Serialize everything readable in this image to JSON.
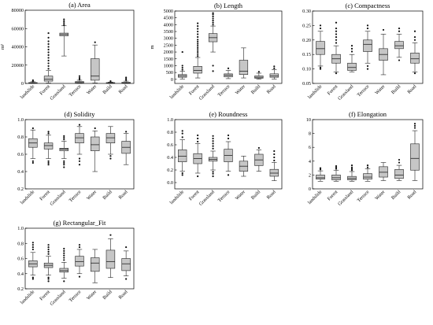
{
  "chart_data": [
    {
      "type": "box",
      "title": "(a) Area",
      "ylabel": "m²",
      "ylim": [
        0,
        80000
      ],
      "yticks": [
        "0",
        "20000",
        "40000",
        "60000",
        "80000"
      ],
      "categories": [
        "landslide",
        "Forest",
        "Grassland",
        "Terrace",
        "Water",
        "Build",
        "Road"
      ],
      "boxes": [
        {
          "min": 0,
          "q1": 200,
          "median": 500,
          "q3": 900,
          "max": 1800,
          "outliers": [
            2500,
            3500
          ]
        },
        {
          "min": 500,
          "q1": 2500,
          "median": 4500,
          "q3": 8000,
          "max": 14000,
          "outliers": [
            16000,
            19000,
            22000,
            25000,
            28000,
            31000,
            34000,
            37000,
            40000,
            43000,
            46000,
            50000,
            55000
          ]
        },
        {
          "min": 30000,
          "q1": 52000,
          "median": 53500,
          "q3": 55000,
          "max": 63000,
          "outliers": [
            64000,
            66000,
            68000,
            70000
          ]
        },
        {
          "min": 0,
          "q1": 500,
          "median": 1000,
          "q3": 2000,
          "max": 3500,
          "outliers": [
            4500,
            6000,
            8000
          ]
        },
        {
          "min": 500,
          "q1": 3500,
          "median": 8000,
          "q3": 27000,
          "max": 42000,
          "outliers": [
            45000
          ]
        },
        {
          "min": 0,
          "q1": 200,
          "median": 500,
          "q3": 900,
          "max": 1500,
          "outliers": [
            2500
          ]
        },
        {
          "min": 0,
          "q1": 200,
          "median": 500,
          "q3": 1200,
          "max": 2500,
          "outliers": [
            3500,
            5000,
            6500
          ]
        }
      ]
    },
    {
      "type": "box",
      "title": "(b) Length",
      "ylabel": "m",
      "ylim": [
        -300,
        5000
      ],
      "yticks": [
        "0",
        "500",
        "1000",
        "1500",
        "2000",
        "2500",
        "3000",
        "3500",
        "4000",
        "4500",
        "5000"
      ],
      "categories": [
        "landslide",
        "Forest",
        "Grassland",
        "Terrace",
        "Water",
        "Build",
        "Road"
      ],
      "boxes": [
        {
          "min": 20,
          "q1": 150,
          "median": 250,
          "q3": 350,
          "max": 600,
          "outliers": [
            700,
            850,
            1000,
            2000
          ]
        },
        {
          "min": 100,
          "q1": 450,
          "median": 650,
          "q3": 950,
          "max": 1600,
          "outliers": [
            1700,
            1850,
            2000,
            2150,
            2300,
            2450,
            2600,
            2750,
            2900,
            3100,
            3300,
            3500,
            3700,
            3900,
            4100
          ]
        },
        {
          "min": 2000,
          "q1": 2750,
          "median": 3050,
          "q3": 3350,
          "max": 3900,
          "outliers": [
            4000,
            4150,
            4300,
            4450,
            4600,
            4750,
            4850,
            600,
            1000
          ]
        },
        {
          "min": 50,
          "q1": 180,
          "median": 300,
          "q3": 400,
          "max": 650,
          "outliers": [
            800
          ]
        },
        {
          "min": 100,
          "q1": 350,
          "median": 600,
          "q3": 1400,
          "max": 2300,
          "outliers": []
        },
        {
          "min": 20,
          "q1": 80,
          "median": 150,
          "q3": 250,
          "max": 450,
          "outliers": [
            550
          ]
        },
        {
          "min": 20,
          "q1": 150,
          "median": 250,
          "q3": 400,
          "max": 700,
          "outliers": [
            800,
            950
          ]
        }
      ]
    },
    {
      "type": "box",
      "title": "(c) Compactness",
      "ylabel": "",
      "ylim": [
        0.05,
        0.3
      ],
      "yticks": [
        "0.05",
        "0.10",
        "0.15",
        "0.20",
        "0.25",
        "0.30"
      ],
      "categories": [
        "landslide",
        "Forest",
        "Grassland",
        "Terrace",
        "Water",
        "Build",
        "Road"
      ],
      "boxes": [
        {
          "min": 0.11,
          "q1": 0.15,
          "median": 0.17,
          "q3": 0.195,
          "max": 0.23,
          "outliers": [
            0.1,
            0.105,
            0.24,
            0.25
          ]
        },
        {
          "min": 0.09,
          "q1": 0.12,
          "median": 0.135,
          "q3": 0.15,
          "max": 0.18,
          "outliers": [
            0.085,
            0.19,
            0.2,
            0.21,
            0.22,
            0.23,
            0.24,
            0.26
          ]
        },
        {
          "min": 0.09,
          "q1": 0.095,
          "median": 0.105,
          "q3": 0.12,
          "max": 0.15,
          "outliers": [
            0.16,
            0.17,
            0.18
          ]
        },
        {
          "min": 0.12,
          "q1": 0.16,
          "median": 0.185,
          "q3": 0.2,
          "max": 0.23,
          "outliers": [
            0.1,
            0.11,
            0.24,
            0.25
          ]
        },
        {
          "min": 0.08,
          "q1": 0.13,
          "median": 0.15,
          "q3": 0.17,
          "max": 0.22,
          "outliers": [
            0.235
          ]
        },
        {
          "min": 0.14,
          "q1": 0.17,
          "median": 0.18,
          "q3": 0.195,
          "max": 0.22,
          "outliers": [
            0.13,
            0.23,
            0.24
          ]
        },
        {
          "min": 0.09,
          "q1": 0.12,
          "median": 0.135,
          "q3": 0.155,
          "max": 0.19,
          "outliers": [
            0.085,
            0.2,
            0.21,
            0.23
          ]
        }
      ]
    },
    {
      "type": "box",
      "title": "(d) Solidity",
      "ylabel": "",
      "ylim": [
        0.2,
        1.0
      ],
      "yticks": [
        "0.2",
        "0.4",
        "0.6",
        "0.8",
        "1.0"
      ],
      "categories": [
        "landslide",
        "Forest",
        "Grassland",
        "Terrace",
        "Water",
        "Build",
        "Road"
      ],
      "boxes": [
        {
          "min": 0.55,
          "q1": 0.68,
          "median": 0.73,
          "q3": 0.78,
          "max": 0.88,
          "outliers": [
            0.5,
            0.52,
            0.9
          ]
        },
        {
          "min": 0.55,
          "q1": 0.66,
          "median": 0.7,
          "q3": 0.73,
          "max": 0.82,
          "outliers": [
            0.48,
            0.5,
            0.52,
            0.84,
            0.86
          ]
        },
        {
          "min": 0.55,
          "q1": 0.64,
          "median": 0.66,
          "q3": 0.67,
          "max": 0.75,
          "outliers": [
            0.45,
            0.48,
            0.5,
            0.52,
            0.77,
            0.79,
            0.81
          ]
        },
        {
          "min": 0.6,
          "q1": 0.73,
          "median": 0.79,
          "q3": 0.84,
          "max": 0.92,
          "outliers": [
            0.48,
            0.52,
            0.55,
            0.94
          ]
        },
        {
          "min": 0.4,
          "q1": 0.64,
          "median": 0.71,
          "q3": 0.8,
          "max": 0.87,
          "outliers": [
            0.9
          ]
        },
        {
          "min": 0.6,
          "q1": 0.73,
          "median": 0.79,
          "q3": 0.84,
          "max": 0.92,
          "outliers": [
            0.55,
            0.58
          ]
        },
        {
          "min": 0.48,
          "q1": 0.61,
          "median": 0.68,
          "q3": 0.75,
          "max": 0.84,
          "outliers": [
            0.86
          ]
        }
      ]
    },
    {
      "type": "box",
      "title": "(e) Roundness",
      "ylabel": "",
      "ylim": [
        -0.1,
        1.0
      ],
      "yticks": [
        "0.0",
        "0.2",
        "0.4",
        "0.6",
        "0.8",
        "1.0"
      ],
      "categories": [
        "landslide",
        "Forest",
        "Grassland",
        "Terrace",
        "Water",
        "Build",
        "Road"
      ],
      "boxes": [
        {
          "min": 0.18,
          "q1": 0.33,
          "median": 0.42,
          "q3": 0.52,
          "max": 0.68,
          "outliers": [
            0.12,
            0.15,
            0.72,
            0.78,
            0.82
          ]
        },
        {
          "min": 0.15,
          "q1": 0.3,
          "median": 0.38,
          "q3": 0.46,
          "max": 0.62,
          "outliers": [
            0.1,
            0.65,
            0.7,
            0.75
          ]
        },
        {
          "min": 0.2,
          "q1": 0.34,
          "median": 0.37,
          "q3": 0.4,
          "max": 0.5,
          "outliers": [
            0.1,
            0.14,
            0.17,
            0.54,
            0.58,
            0.62,
            0.66,
            0.7,
            0.74
          ]
        },
        {
          "min": 0.18,
          "q1": 0.33,
          "median": 0.43,
          "q3": 0.53,
          "max": 0.65,
          "outliers": [
            0.12,
            0.7,
            0.75
          ]
        },
        {
          "min": 0.1,
          "q1": 0.18,
          "median": 0.26,
          "q3": 0.34,
          "max": 0.42,
          "outliers": []
        },
        {
          "min": 0.18,
          "q1": 0.27,
          "median": 0.36,
          "q3": 0.45,
          "max": 0.52,
          "outliers": [
            0.55
          ]
        },
        {
          "min": 0.03,
          "q1": 0.1,
          "median": 0.15,
          "q3": 0.21,
          "max": 0.32,
          "outliers": [
            0.35,
            0.4,
            0.45,
            0.5
          ]
        }
      ]
    },
    {
      "type": "box",
      "title": "(f) Elongation",
      "ylabel": "",
      "ylim": [
        0,
        10
      ],
      "yticks": [
        "0",
        "2",
        "4",
        "6",
        "8",
        "10"
      ],
      "categories": [
        "landslide",
        "Forest",
        "Grassland",
        "Terrace",
        "Water",
        "Build",
        "Road"
      ],
      "boxes": [
        {
          "min": 1.1,
          "q1": 1.4,
          "median": 1.6,
          "q3": 2.0,
          "max": 2.6,
          "outliers": [
            2.8,
            3.0
          ]
        },
        {
          "min": 1.1,
          "q1": 1.3,
          "median": 1.6,
          "q3": 2.0,
          "max": 2.7,
          "outliers": [
            2.9,
            3.1,
            3.3
          ]
        },
        {
          "min": 1.1,
          "q1": 1.3,
          "median": 1.5,
          "q3": 1.8,
          "max": 2.5,
          "outliers": [
            2.7,
            2.9,
            3.1,
            3.4
          ]
        },
        {
          "min": 1.1,
          "q1": 1.4,
          "median": 1.7,
          "q3": 2.2,
          "max": 2.9,
          "outliers": [
            3.1,
            3.4
          ]
        },
        {
          "min": 1.2,
          "q1": 1.7,
          "median": 2.4,
          "q3": 3.2,
          "max": 3.8,
          "outliers": []
        },
        {
          "min": 1.2,
          "q1": 1.5,
          "median": 2.0,
          "q3": 2.8,
          "max": 3.4,
          "outliers": [
            3.8,
            4.2
          ]
        },
        {
          "min": 1.2,
          "q1": 2.7,
          "median": 4.4,
          "q3": 6.5,
          "max": 8.4,
          "outliers": [
            8.8,
            9.1,
            9.4
          ]
        }
      ]
    },
    {
      "type": "box",
      "title": "(g) Rectangular_Fit",
      "ylabel": "",
      "ylim": [
        0.2,
        1.0
      ],
      "yticks": [
        "0.2",
        "0.4",
        "0.6",
        "0.8",
        "1.0"
      ],
      "categories": [
        "landslide",
        "Forest",
        "Grassland",
        "Terrace",
        "Water",
        "Build",
        "Road"
      ],
      "boxes": [
        {
          "min": 0.38,
          "q1": 0.49,
          "median": 0.53,
          "q3": 0.57,
          "max": 0.68,
          "outliers": [
            0.33,
            0.35,
            0.72,
            0.75,
            0.78,
            0.81
          ]
        },
        {
          "min": 0.38,
          "q1": 0.48,
          "median": 0.51,
          "q3": 0.54,
          "max": 0.63,
          "outliers": [
            0.3,
            0.33,
            0.35,
            0.66,
            0.69,
            0.72,
            0.75,
            0.78
          ]
        },
        {
          "min": 0.34,
          "q1": 0.42,
          "median": 0.44,
          "q3": 0.47,
          "max": 0.55,
          "outliers": [
            0.3,
            0.58,
            0.61,
            0.64,
            0.67,
            0.7,
            0.73
          ]
        },
        {
          "min": 0.4,
          "q1": 0.5,
          "median": 0.56,
          "q3": 0.63,
          "max": 0.72,
          "outliers": [
            0.36,
            0.75,
            0.78
          ]
        },
        {
          "min": 0.28,
          "q1": 0.43,
          "median": 0.54,
          "q3": 0.61,
          "max": 0.72,
          "outliers": []
        },
        {
          "min": 0.35,
          "q1": 0.47,
          "median": 0.56,
          "q3": 0.71,
          "max": 0.86,
          "outliers": [
            0.91
          ]
        },
        {
          "min": 0.37,
          "q1": 0.44,
          "median": 0.53,
          "q3": 0.6,
          "max": 0.7,
          "outliers": [
            0.33,
            0.75
          ]
        }
      ]
    }
  ],
  "colors": {
    "box_fill": "#c6c6c6",
    "stroke": "#222222",
    "outlier": "#111111"
  }
}
